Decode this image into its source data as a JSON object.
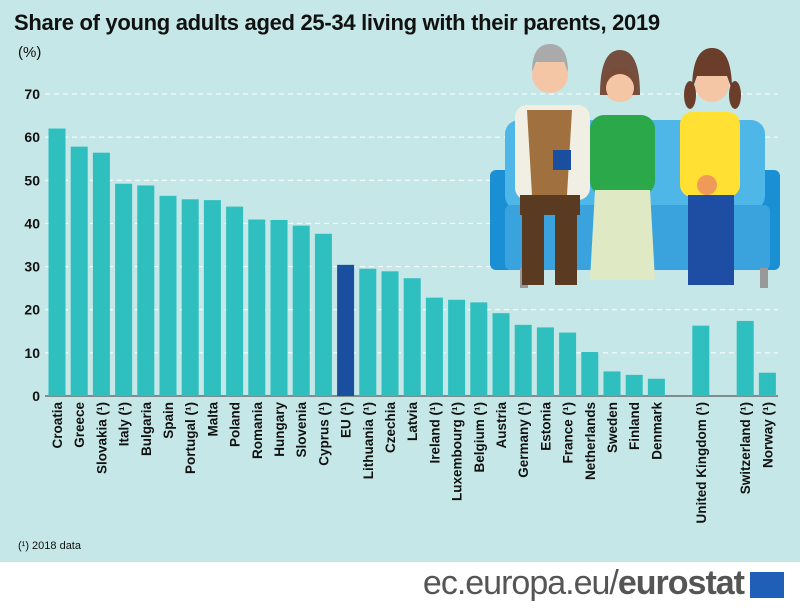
{
  "title": "Share of young adults aged 25-34 living with their parents, 2019",
  "unit": "(%)",
  "footnote": "(¹) 2018 data",
  "footer": {
    "site_prefix": "ec.europa.eu/",
    "site_brand": "eurostat"
  },
  "colors": {
    "bar": "#2fbfbf",
    "eu_bar": "#1a4fa0",
    "background": "#c6e7e7"
  },
  "chart_data": {
    "type": "bar",
    "title": "Share of young adults aged 25-34 living with their parents, 2019",
    "ylabel": "(%)",
    "ylim": [
      0,
      70
    ],
    "yticks": [
      0,
      10,
      20,
      30,
      40,
      50,
      60,
      70
    ],
    "grid": true,
    "categories": [
      "Croatia",
      "Greece",
      "Slovakia (¹)",
      "Italy (¹)",
      "Bulgaria",
      "Spain",
      "Portugal (¹)",
      "Malta",
      "Poland",
      "Romania",
      "Hungary",
      "Slovenia",
      "Cyprus (¹)",
      "EU (¹)",
      "Lithuania (¹)",
      "Czechia",
      "Latvia",
      "Ireland (¹)",
      "Luxembourg (¹)",
      "Belgium (¹)",
      "Austria",
      "Germany (¹)",
      "Estonia",
      "France (¹)",
      "Netherlands",
      "Sweden",
      "Finland",
      "Denmark",
      "United Kingdom (¹)",
      "Switzerland (¹)",
      "Norway (¹)"
    ],
    "values": [
      62.0,
      57.8,
      56.4,
      49.2,
      48.8,
      46.4,
      45.6,
      45.4,
      43.9,
      40.9,
      40.8,
      39.5,
      37.6,
      30.4,
      29.5,
      28.9,
      27.3,
      22.8,
      22.3,
      21.7,
      19.2,
      16.5,
      15.9,
      14.7,
      10.2,
      5.7,
      4.9,
      4.0,
      16.3,
      17.4,
      5.4
    ],
    "highlight": "EU (¹)"
  }
}
